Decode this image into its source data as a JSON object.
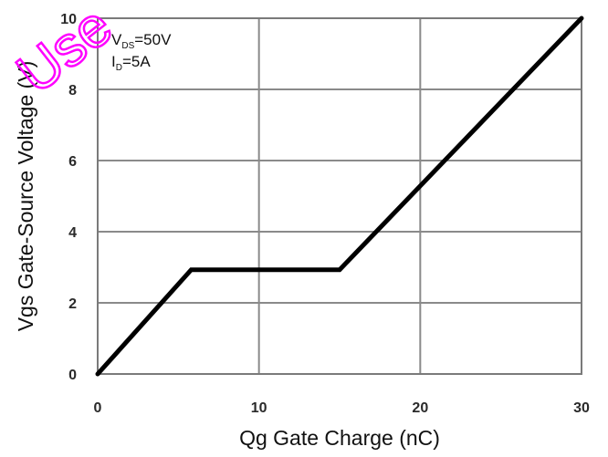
{
  "chart_data": {
    "type": "line",
    "title": "",
    "xlabel": "Qg Gate Charge (nC)",
    "ylabel": "Vgs Gate-Source Voltage (V)",
    "xlim": [
      0,
      30
    ],
    "ylim": [
      0,
      10
    ],
    "xticks": [
      0,
      10,
      20,
      30
    ],
    "yticks": [
      0,
      2,
      4,
      6,
      8,
      10
    ],
    "grid": true,
    "series": [
      {
        "name": "",
        "color": "#000000",
        "x": [
          0,
          5.8,
          15,
          30
        ],
        "y": [
          0,
          2.93,
          2.93,
          10
        ]
      }
    ],
    "annotations": [
      {
        "main": "V",
        "sub": "DS",
        "rest": "=50V"
      },
      {
        "main": "I",
        "sub": "D",
        "rest": "=5A"
      }
    ]
  },
  "watermark": "Use",
  "watermark_color": "#ff00ff"
}
